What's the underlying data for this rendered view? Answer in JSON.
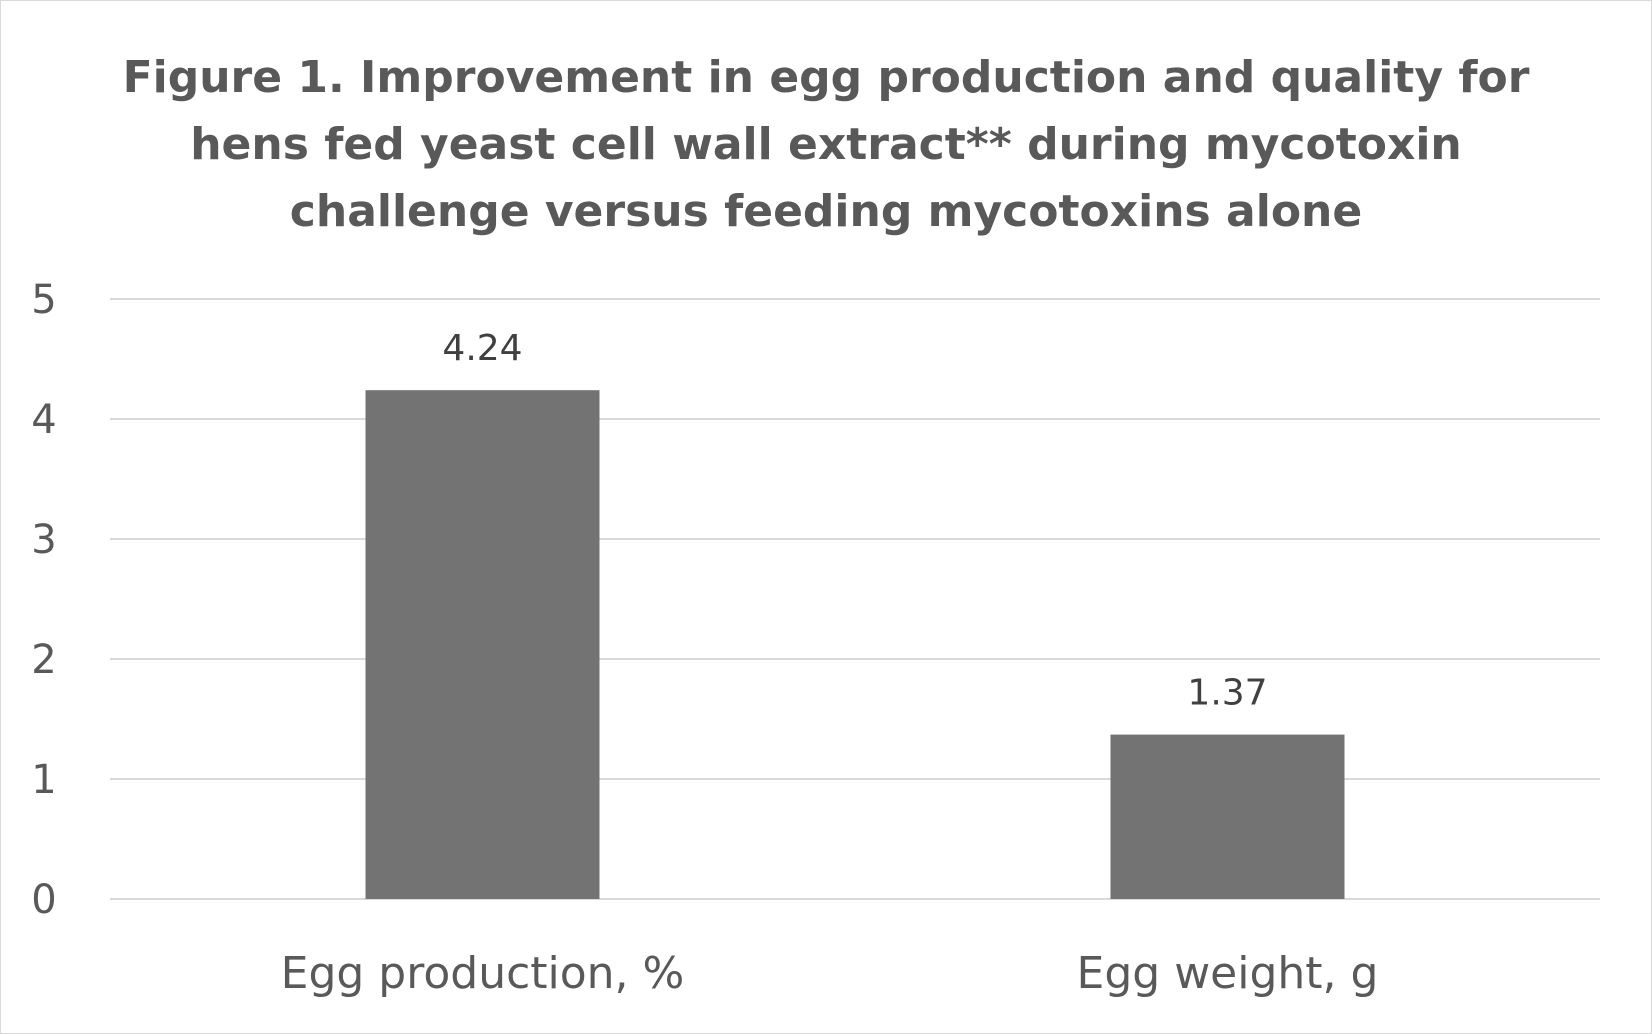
{
  "chart_data": {
    "type": "bar",
    "title": "Figure 1. Improvement in egg production and quality for hens fed yeast cell wall extract** during mycotoxin challenge versus feeding mycotoxins alone",
    "categories": [
      "Egg production, %",
      "Egg weight, g"
    ],
    "values": [
      4.24,
      1.37
    ],
    "data_labels": [
      "4.24",
      "1.37"
    ],
    "xlabel": "",
    "ylabel": "",
    "ylim": [
      0,
      5
    ],
    "yticks": [
      0,
      1,
      2,
      3,
      4,
      5
    ],
    "grid": true,
    "legend": "none",
    "colors": {
      "bar": "#737373",
      "grid": "#d9d9d9",
      "axis_text": "#595959",
      "data_label": "#404040",
      "border": "#d9d9d9"
    }
  }
}
